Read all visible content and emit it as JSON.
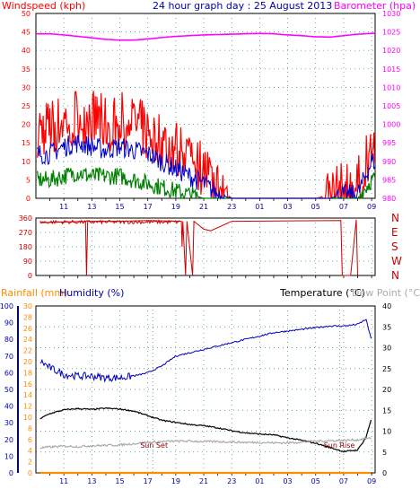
{
  "header": {
    "windspeed_label": "Windspeed (kph)",
    "title": "24 hour graph day : 25 August 2013",
    "barometer_label": "Barometer (hpa)",
    "rainfall_label": "Rainfall (mm)",
    "humidity_label": "Humidity (%)",
    "temperature_label": "Temperature (°C)",
    "dewpoint_label": "Dew Point (°C)"
  },
  "colors": {
    "windspeed": "#ff0000",
    "wind_avg": "#0000cc",
    "wind_low": "#008000",
    "barometer": "#ff00ff",
    "direction": "#cc0000",
    "rainfall": "#ff8c00",
    "humidity": "#0000bb",
    "temperature": "#000000",
    "dewpoint": "#aaaaaa",
    "axis_blue": "#0000aa",
    "grid": "#2e8b8b"
  },
  "x_axis": {
    "ticks": [
      "11",
      "13",
      "15",
      "17",
      "19",
      "21",
      "23",
      "01",
      "03",
      "05",
      "07",
      "09"
    ],
    "minor_tick_count": 24
  },
  "annotations": {
    "sunset": "Sun Set",
    "sunrise": "Sun Rise",
    "sunset_time_hours": 17.35,
    "sunrise_time_hours": 6.73
  },
  "chart_data": [
    {
      "type": "line",
      "title": "24 hour graph day : 25 August 2013",
      "x_unit": "hour of day",
      "x_range": [
        "09:00 24 Aug",
        "09:15 25 Aug"
      ],
      "ylabel": "Windspeed (kph)",
      "ylim": [
        0,
        50
      ],
      "y_ticks": [
        0,
        5,
        10,
        15,
        20,
        25,
        30,
        35,
        40,
        45,
        50
      ],
      "y2label": "Barometer (hpa)",
      "y2lim": [
        980,
        1030
      ],
      "y2_ticks": [
        980,
        985,
        990,
        995,
        1000,
        1005,
        1010,
        1015,
        1020,
        1025,
        1030
      ],
      "grid": true,
      "x": [
        10,
        11,
        12,
        13,
        14,
        15,
        16,
        17,
        18,
        19,
        20,
        21,
        22,
        23,
        24,
        25,
        26,
        27,
        28,
        29,
        30,
        31,
        32,
        33
      ],
      "series": [
        {
          "name": "Windspeed (kph)",
          "axis": "left",
          "style": "noisy",
          "values": [
            19,
            21,
            23,
            22,
            20,
            21,
            20,
            18,
            15,
            14,
            12,
            8,
            3,
            0,
            0,
            0,
            0,
            0,
            0,
            0,
            1,
            2,
            3,
            15
          ]
        },
        {
          "name": "",
          "axis": "left",
          "style": "noisy",
          "values": [
            12,
            14,
            15,
            14,
            13,
            14,
            13,
            12,
            10,
            8,
            6,
            4,
            1,
            0,
            0,
            0,
            0,
            0,
            0,
            0,
            0,
            1,
            1,
            10
          ]
        },
        {
          "name": "",
          "axis": "left",
          "style": "noisy",
          "values": [
            5,
            6,
            7,
            6,
            6,
            6,
            5,
            4,
            3,
            2,
            1,
            0,
            0,
            0,
            0,
            0,
            0,
            0,
            0,
            0,
            0,
            0,
            0,
            5
          ]
        },
        {
          "name": "Barometer (hpa)",
          "axis": "right",
          "style": "smooth",
          "values": [
            1024.5,
            1024.2,
            1023.8,
            1023.4,
            1023,
            1022.8,
            1022.8,
            1023.1,
            1023.5,
            1023.8,
            1024,
            1024.2,
            1024.3,
            1024.4,
            1024.5,
            1024.6,
            1024.5,
            1024.2,
            1024,
            1023.7,
            1023.6,
            1024,
            1024.4,
            1024.6
          ]
        }
      ]
    },
    {
      "type": "line",
      "ylabel": "Wind direction",
      "ylim": [
        0,
        360
      ],
      "y_ticks": [
        0,
        90,
        180,
        270,
        360
      ],
      "y2_labels": [
        "N",
        "W",
        "S",
        "E",
        "N"
      ],
      "grid": true,
      "x": [
        9.3,
        11,
        12.55,
        12.62,
        12.7,
        15,
        17,
        19.4,
        19.45,
        19.5,
        19.7,
        19.8,
        20.2,
        20.3,
        21,
        21.5,
        23,
        30.8,
        30.9,
        31.5,
        31.9,
        32.0
      ],
      "series": [
        {
          "name": "",
          "values": [
            330,
            335,
            340,
            0,
            340,
            340,
            345,
            340,
            180,
            340,
            0,
            340,
            0,
            340,
            290,
            280,
            340,
            345,
            0,
            0,
            350,
            0
          ]
        }
      ]
    },
    {
      "type": "line",
      "ylabel": "Humidity (%)",
      "ylim": [
        0,
        100
      ],
      "y_ticks": [
        0,
        10,
        20,
        30,
        40,
        50,
        60,
        70,
        80,
        90,
        100
      ],
      "y_rain_label": "Rainfall (mm)",
      "y_rain_ticks": [
        0,
        2,
        4,
        6,
        8,
        10,
        12,
        14,
        16,
        18,
        20,
        22,
        24,
        26,
        28,
        30
      ],
      "y2label": "Temperature (°C)",
      "y2lim": [
        0,
        40
      ],
      "y2_ticks": [
        0,
        5,
        10,
        15,
        20,
        25,
        30,
        35,
        40
      ],
      "grid": true,
      "x": [
        9.3,
        10,
        11,
        12,
        13,
        14,
        15,
        16,
        17,
        18,
        19,
        20,
        21,
        22,
        23,
        24,
        25,
        26,
        27,
        28,
        29,
        30,
        31,
        32,
        32.6,
        33
      ],
      "series": [
        {
          "name": "Humidity (%)",
          "axis": "humidity",
          "values": [
            67,
            63,
            59,
            58,
            58,
            57,
            57,
            58,
            60,
            64,
            70,
            72,
            74,
            76,
            78,
            80,
            82,
            84,
            85,
            86,
            87,
            88,
            88,
            89,
            92,
            79
          ]
        },
        {
          "name": "Temperature (°C)",
          "axis": "temperature",
          "values": [
            13,
            14.2,
            15.1,
            15.4,
            15.2,
            15.5,
            15.3,
            14.8,
            13.7,
            12.6,
            12.1,
            11.6,
            11.3,
            10.8,
            10.1,
            9.6,
            9.3,
            9.1,
            8.4,
            7.8,
            7.1,
            6.1,
            5.1,
            5.5,
            8.5,
            13.2
          ]
        },
        {
          "name": "Dew Point (°C)",
          "axis": "temperature",
          "values": [
            6,
            6.2,
            6.4,
            6.3,
            6.5,
            6.6,
            6.7,
            7,
            7.3,
            7.5,
            7.6,
            7.6,
            7.5,
            7.5,
            7.4,
            7.3,
            7.3,
            7.2,
            7.2,
            7.4,
            7.6,
            7.7,
            7.8,
            7.9,
            8.3,
            8.2
          ]
        },
        {
          "name": "Rainfall (mm)",
          "axis": "rain",
          "values": [
            0,
            0,
            0,
            0,
            0,
            0,
            0,
            0,
            0,
            0,
            0,
            0,
            0,
            0,
            0,
            0,
            0,
            0,
            0,
            0,
            0,
            0,
            0,
            0,
            0,
            0
          ]
        }
      ]
    }
  ]
}
